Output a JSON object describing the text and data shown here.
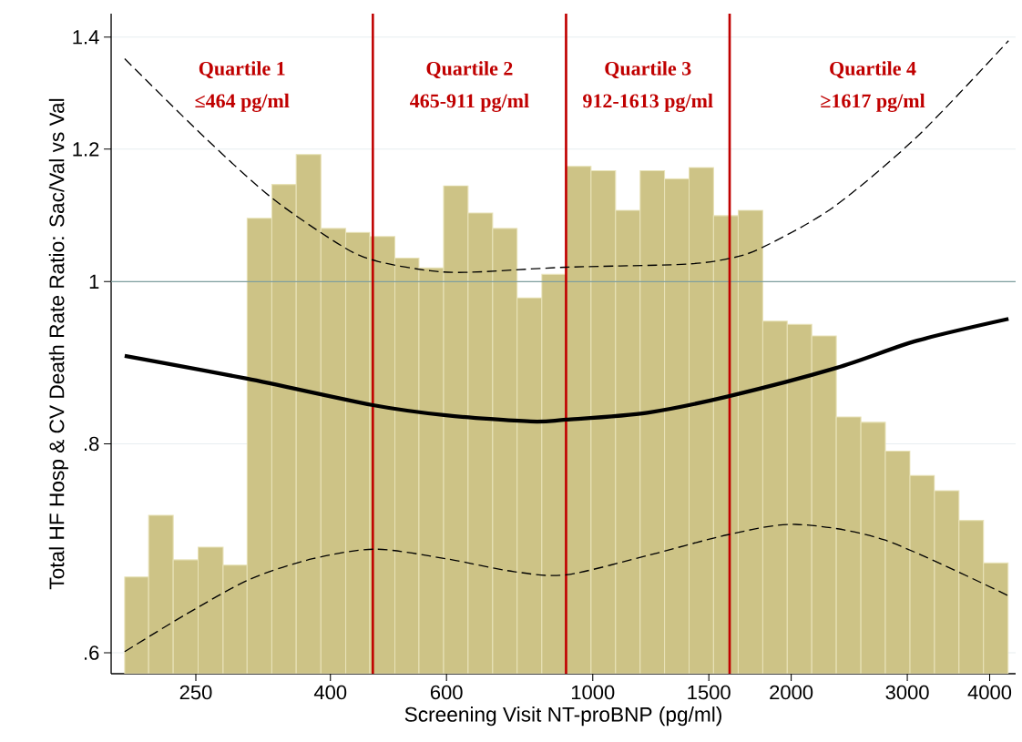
{
  "chart_data": {
    "type": "histogram",
    "xlabel": "Screening Visit NT-proBNP (pg/ml)",
    "ylabel": "Total HF Hosp & CV Death Rate Ratio: Sac/Val vs Val",
    "bins": [
      195,
      212,
      231,
      252,
      275,
      299,
      326,
      355,
      387,
      422,
      459,
      501,
      545,
      594,
      647,
      705,
      768,
      837,
      912,
      994,
      1083,
      1180,
      1285,
      1400,
      1525,
      1662,
      1811,
      1973,
      2149,
      2341,
      2551,
      2779,
      3028,
      3299,
      3594,
      3915,
      4266
    ],
    "values": [
      0.666,
      0.725,
      0.682,
      0.694,
      0.677,
      1.091,
      1.143,
      1.191,
      1.076,
      1.07,
      1.064,
      1.033,
      1.019,
      1.141,
      1.099,
      1.076,
      0.978,
      1.01,
      1.172,
      1.165,
      1.103,
      1.165,
      1.152,
      1.17,
      1.095,
      1.103,
      0.947,
      0.943,
      0.928,
      0.83,
      0.824,
      0.792,
      0.766,
      0.75,
      0.72,
      0.679
    ],
    "color": "#cdc386",
    "series": [
      {
        "type": "line",
        "color": "#000000",
        "line_style": "solid",
        "x": [
          195,
          299,
          462,
          599,
          805,
          911,
          1210,
          1605,
          2341,
          3106,
          4272
        ],
        "values": [
          0.903,
          0.875,
          0.844,
          0.832,
          0.825,
          0.827,
          0.835,
          0.854,
          0.888,
          0.922,
          0.95
        ]
      },
      {
        "type": "line",
        "color": "#000000",
        "line_style": "dashed",
        "x": [
          195,
          257,
          327,
          420,
          473,
          567,
          652,
          911,
          1364,
          1605,
          1807,
          2311,
          3106,
          4272
        ],
        "values": [
          1.359,
          1.221,
          1.121,
          1.048,
          1.028,
          1.015,
          1.013,
          1.02,
          1.024,
          1.032,
          1.048,
          1.107,
          1.221,
          1.393
        ]
      },
      {
        "type": "line",
        "color": "#000000",
        "line_style": "dashed",
        "x": [
          195,
          242,
          302,
          376,
          468,
          599,
          759,
          911,
          1210,
          1605,
          2033,
          2768,
          4272
        ],
        "values": [
          0.601,
          0.633,
          0.664,
          0.683,
          0.692,
          0.683,
          0.671,
          0.668,
          0.686,
          0.706,
          0.716,
          0.701,
          0.649
        ]
      }
    ],
    "log": "xy",
    "xlim": [
      186,
      4380
    ],
    "ylim": [
      0.583,
      1.446
    ],
    "xticks": [
      250,
      400,
      600,
      1000,
      1500,
      2000,
      3000,
      4000
    ],
    "yticks": [
      {
        "value": 0.6,
        "label": ".6"
      },
      {
        "value": 0.8,
        "label": ".8"
      },
      1,
      1.2,
      1.4
    ],
    "grid": "y",
    "ref_lines": [
      {
        "axis": "y",
        "value": 1,
        "color": "#7f9f9f"
      },
      {
        "axis": "x",
        "value": 464,
        "color": "#c00000"
      },
      {
        "axis": "x",
        "value": 911,
        "color": "#c00000"
      },
      {
        "axis": "x",
        "value": 1613,
        "color": "#c00000"
      }
    ],
    "annotations": [
      "Quartile 1",
      "≤464 pg/ml",
      "Quartile 2",
      "465-911 pg/ml",
      "Quartile 3",
      "912-1613 pg/ml",
      "Quartile 4",
      "≥1617 pg/ml"
    ]
  }
}
